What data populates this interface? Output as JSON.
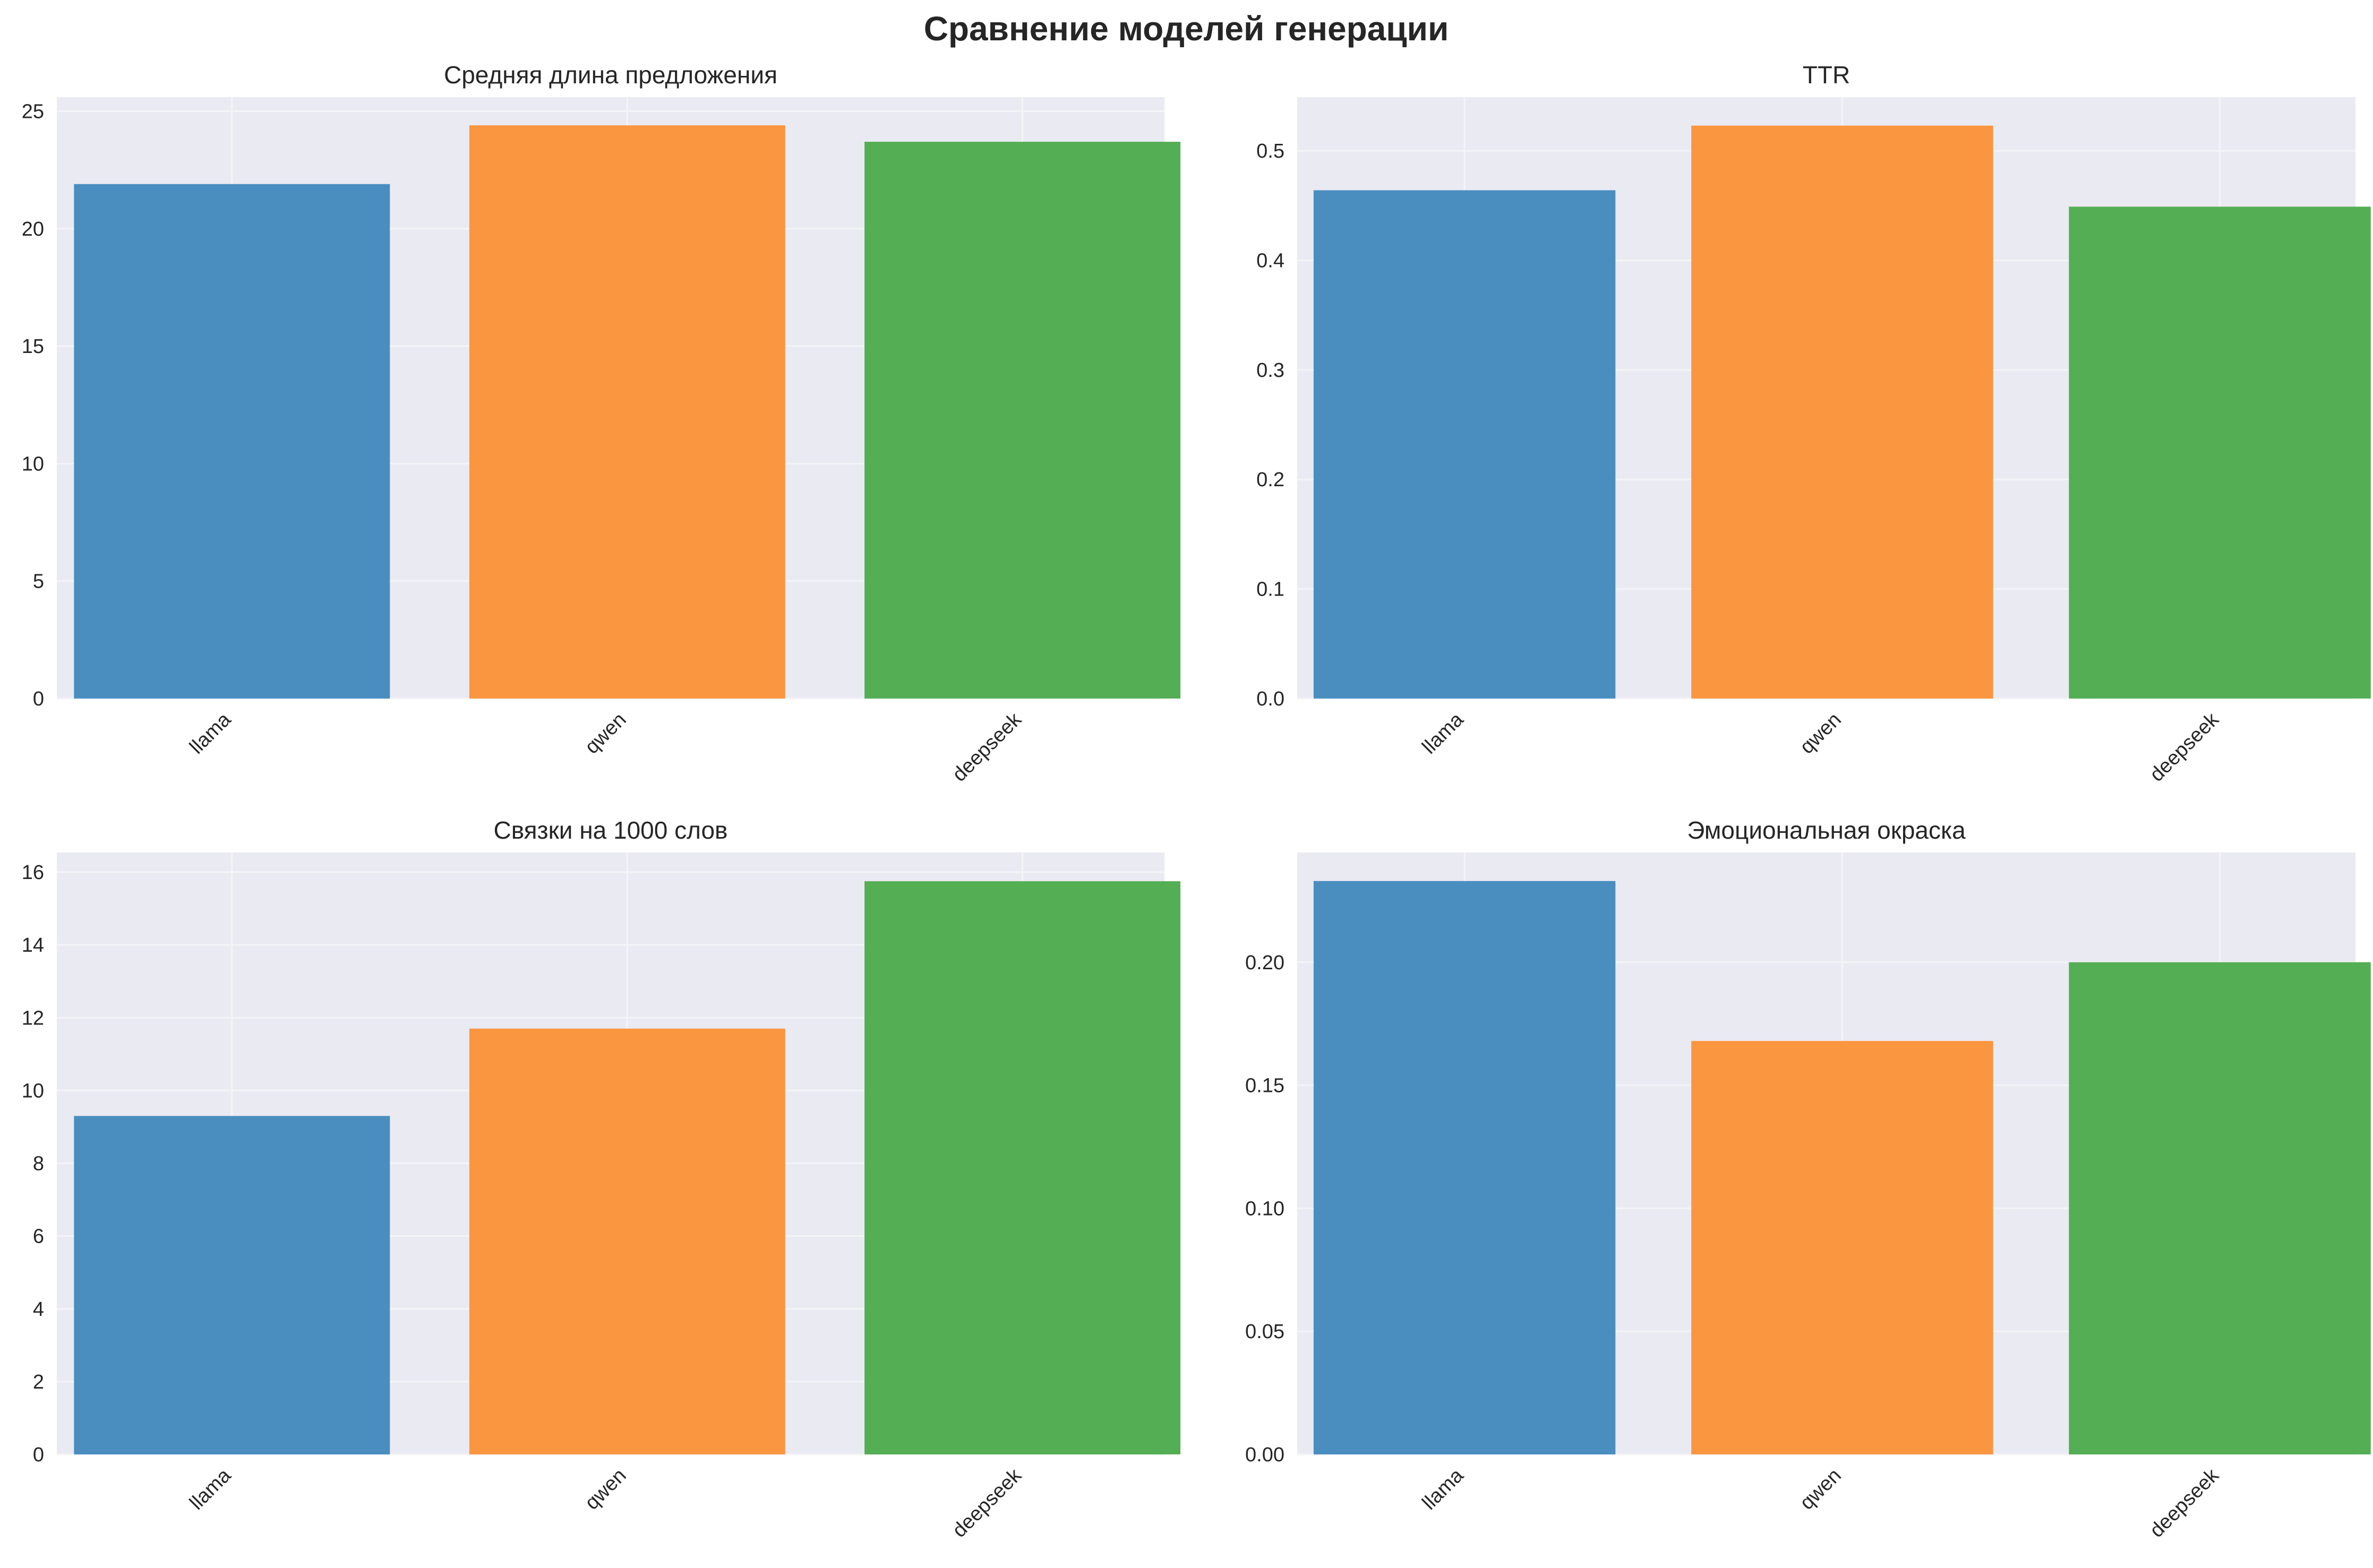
{
  "figure": {
    "title": "Сравнение моделей генерации"
  },
  "style": {
    "panel_bg": "#eaeaf2",
    "grid_color": "#f4f4f8",
    "bar_colors": [
      "#4a8ec0",
      "#fa963f",
      "#53ae54"
    ]
  },
  "chart_data": [
    {
      "type": "bar",
      "title": "Средняя длина предложения",
      "categories": [
        "llama",
        "qwen",
        "deepseek"
      ],
      "values": [
        21.9,
        24.4,
        23.7
      ],
      "ylim": [
        0,
        25.6
      ],
      "yticks": [
        0,
        5,
        10,
        15,
        20,
        25
      ],
      "tick_labels": [
        "0",
        "5",
        "10",
        "15",
        "20",
        "25"
      ],
      "grid": true
    },
    {
      "type": "bar",
      "title": "TTR",
      "categories": [
        "llama",
        "qwen",
        "deepseek"
      ],
      "values": [
        0.464,
        0.523,
        0.449
      ],
      "ylim": [
        0,
        0.549
      ],
      "yticks": [
        0.0,
        0.1,
        0.2,
        0.3,
        0.4,
        0.5
      ],
      "tick_labels": [
        "0.0",
        "0.1",
        "0.2",
        "0.3",
        "0.4",
        "0.5"
      ],
      "grid": true
    },
    {
      "type": "bar",
      "title": "Связки на 1000 слов",
      "categories": [
        "llama",
        "qwen",
        "deepseek"
      ],
      "values": [
        9.3,
        11.7,
        15.75
      ],
      "ylim": [
        0,
        16.54
      ],
      "yticks": [
        0,
        2,
        4,
        6,
        8,
        10,
        12,
        14,
        16
      ],
      "tick_labels": [
        "0",
        "2",
        "4",
        "6",
        "8",
        "10",
        "12",
        "14",
        "16"
      ],
      "grid": true
    },
    {
      "type": "bar",
      "title": "Эмоциональная окраска",
      "categories": [
        "llama",
        "qwen",
        "deepseek"
      ],
      "values": [
        0.233,
        0.168,
        0.2
      ],
      "ylim": [
        0,
        0.2446
      ],
      "yticks": [
        0.0,
        0.05,
        0.1,
        0.15,
        0.2
      ],
      "tick_labels": [
        "0.00",
        "0.05",
        "0.10",
        "0.15",
        "0.20"
      ],
      "grid": true
    }
  ]
}
